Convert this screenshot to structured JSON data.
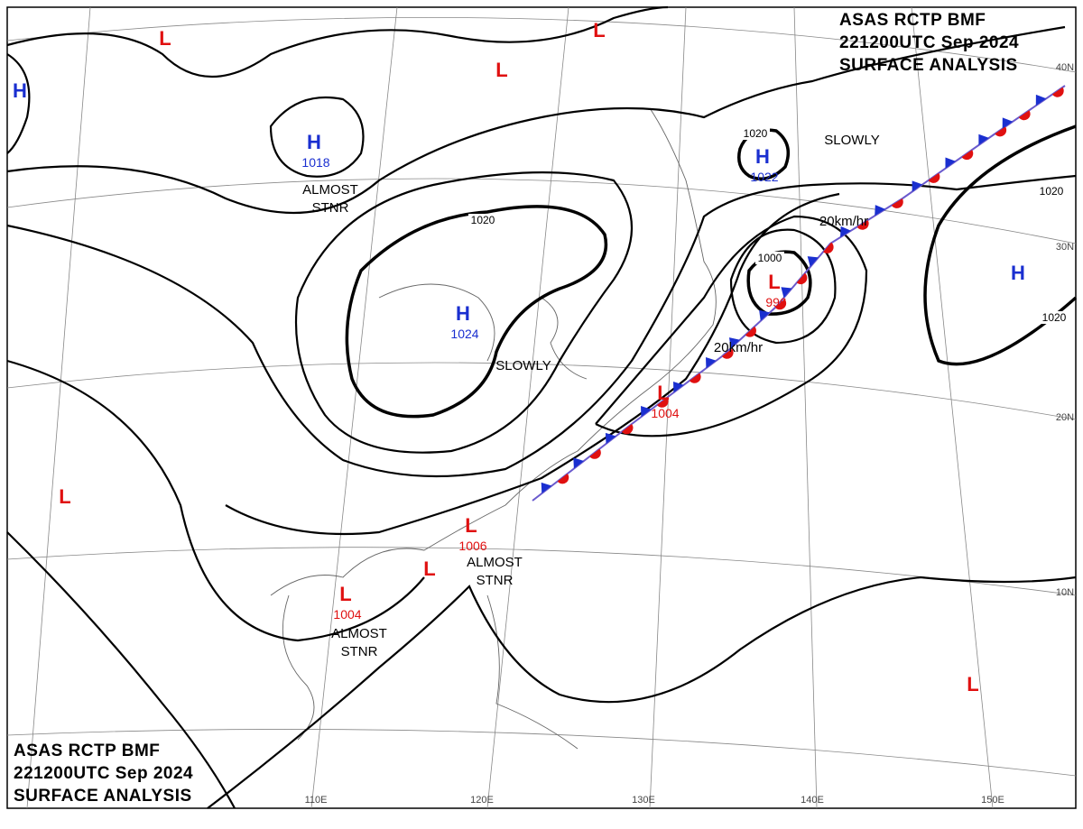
{
  "header_top": [
    "ASAS   RCTP   BMF",
    "221200UTC   Sep   2024",
    "SURFACE  ANALYSIS"
  ],
  "header_bottom": [
    "ASAS   RCTP   BMF",
    "221200UTC   Sep   2024",
    "SURFACE  ANALYSIS"
  ],
  "pressure_systems": [
    {
      "letter": "H"
    },
    {
      "letter": "L"
    },
    {
      "letter": "L"
    },
    {
      "letter": "L"
    },
    {
      "letter": "H",
      "pressure": "1018"
    },
    {
      "letter": "H",
      "pressure": "1022"
    },
    {
      "letter": "H",
      "pressure": "1024"
    },
    {
      "letter": "H"
    },
    {
      "letter": "L",
      "pressure": "996"
    },
    {
      "letter": "L",
      "pressure": "1004"
    },
    {
      "letter": "L",
      "pressure": "1006"
    },
    {
      "letter": "L"
    },
    {
      "letter": "L"
    },
    {
      "letter": "L",
      "pressure": "1004"
    },
    {
      "letter": "L"
    }
  ],
  "isobar_labels": [
    "1020",
    "1020",
    "1000",
    "1020",
    "1020"
  ],
  "annotations": [
    [
      "SLOWLY"
    ],
    [
      "ALMOST",
      "STNR"
    ],
    [
      "SLOWLY"
    ],
    [
      "20km/hr"
    ],
    [
      "20km/hr"
    ],
    [
      "ALMOST",
      "STNR"
    ],
    [
      "ALMOST",
      "STNR"
    ]
  ],
  "latitude_labels": [
    "40N",
    "30N",
    "20N",
    "10N"
  ],
  "longitude_labels": [
    "110E",
    "120E",
    "130E",
    "140E",
    "150E"
  ]
}
